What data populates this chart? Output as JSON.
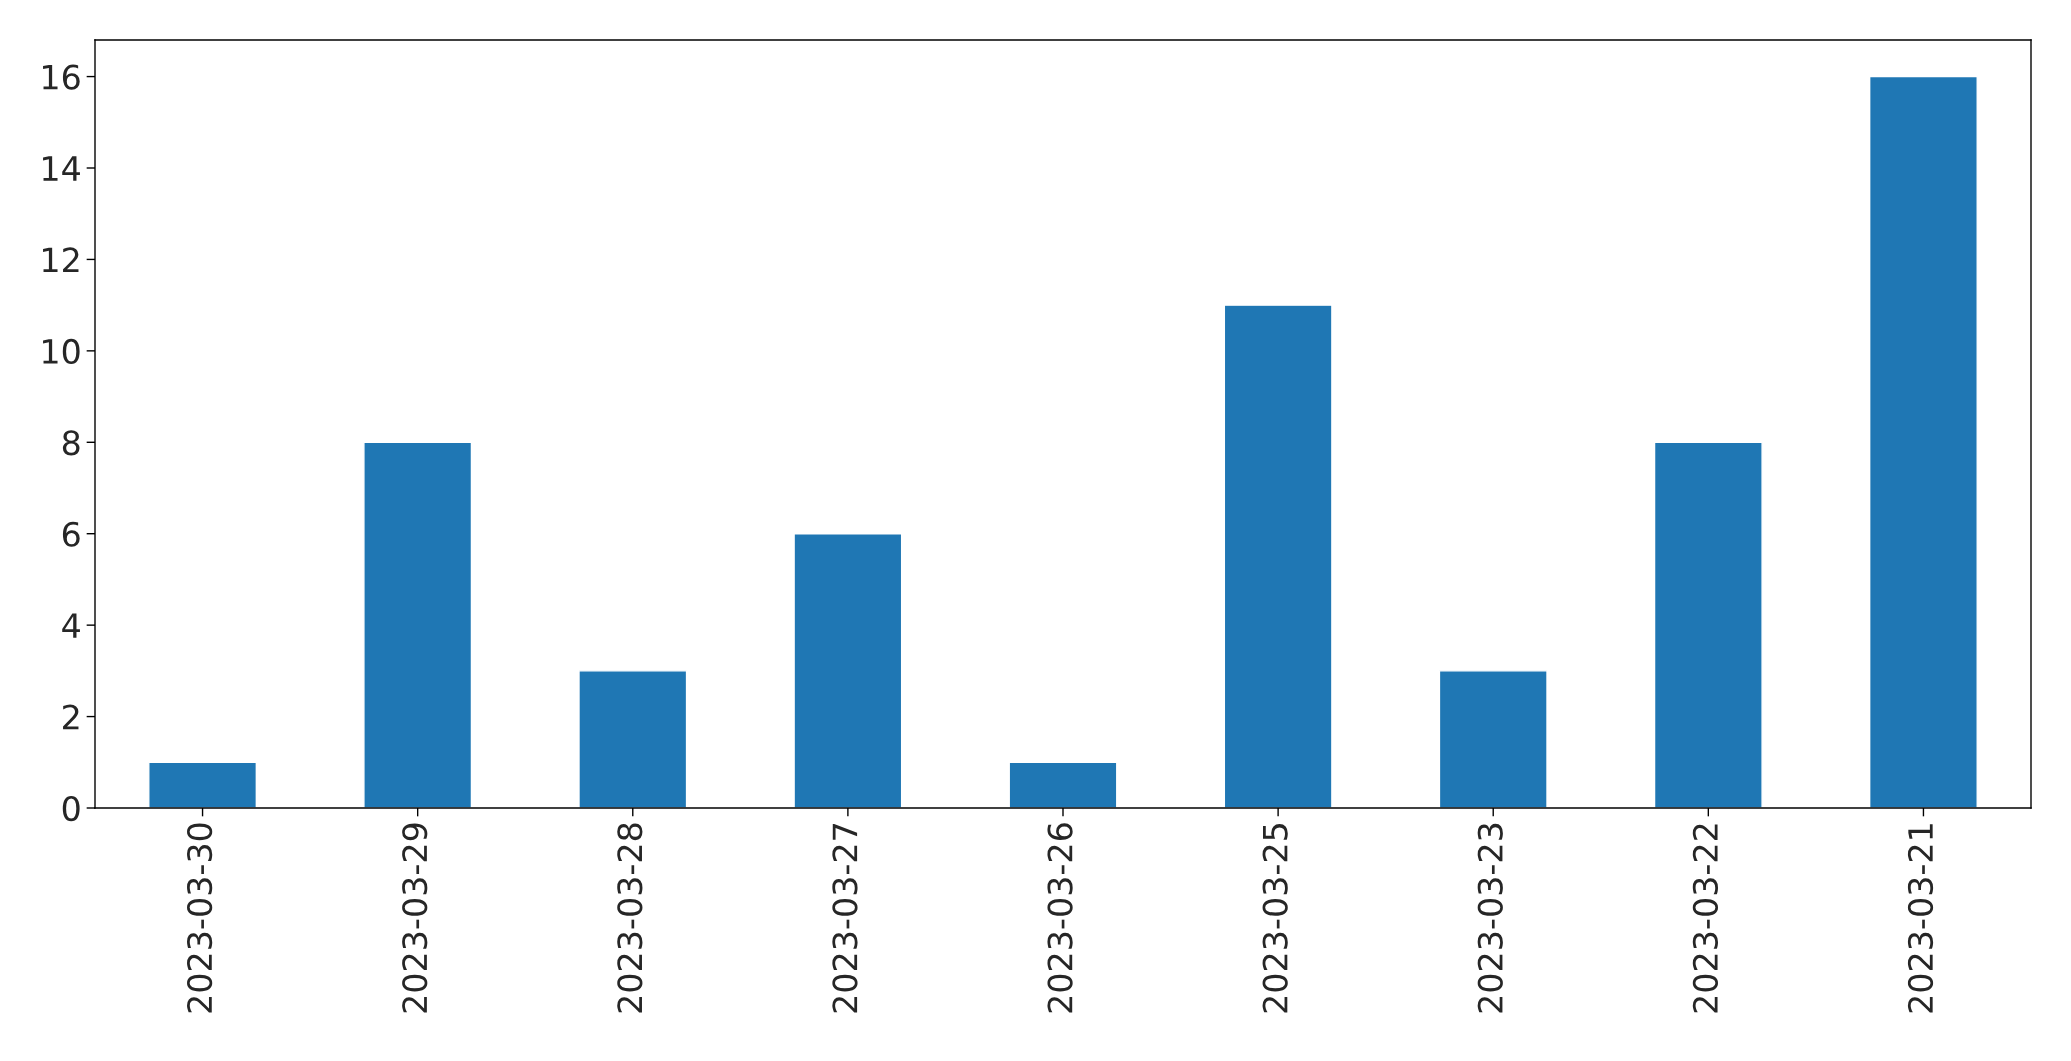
{
  "chart_data": {
    "type": "bar",
    "categories": [
      "2023-03-30",
      "2023-03-29",
      "2023-03-28",
      "2023-03-27",
      "2023-03-26",
      "2023-03-25",
      "2023-03-23",
      "2023-03-22",
      "2023-03-21"
    ],
    "values": [
      1,
      8,
      3,
      6,
      1,
      11,
      3,
      8,
      16
    ],
    "color": "#1f77b4",
    "ylim": [
      0,
      16.8
    ],
    "yticks": [
      0,
      2,
      4,
      6,
      8,
      10,
      12,
      14,
      16
    ],
    "grid": false
  }
}
